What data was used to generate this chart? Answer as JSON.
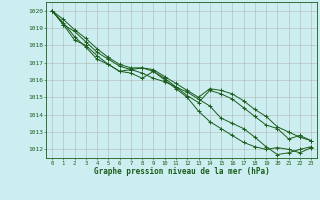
{
  "title": "Graphe pression niveau de la mer (hPa)",
  "background_color": "#cceef0",
  "grid_color": "#b0b0b0",
  "line_color": "#1a5c1a",
  "xlim": [
    -0.5,
    23.5
  ],
  "ylim": [
    1011.5,
    1020.5
  ],
  "yticks": [
    1012,
    1013,
    1014,
    1015,
    1016,
    1017,
    1018,
    1019,
    1020
  ],
  "xticks": [
    0,
    1,
    2,
    3,
    4,
    5,
    6,
    7,
    8,
    9,
    10,
    11,
    12,
    13,
    14,
    15,
    16,
    17,
    18,
    19,
    20,
    21,
    22,
    23
  ],
  "series": [
    [
      1020.0,
      1019.2,
      1018.8,
      1018.2,
      1017.6,
      1017.2,
      1016.8,
      1016.6,
      1016.4,
      1016.1,
      1015.9,
      1015.6,
      1015.3,
      1014.9,
      1014.5,
      1013.8,
      1013.5,
      1013.2,
      1012.7,
      1012.15,
      1011.7,
      1011.8,
      1012.0,
      1012.15
    ],
    [
      1020.0,
      1019.5,
      1018.9,
      1018.4,
      1017.8,
      1017.3,
      1016.9,
      1016.7,
      1016.7,
      1016.6,
      1016.2,
      1015.8,
      1015.4,
      1015.0,
      1015.5,
      1015.4,
      1015.2,
      1014.8,
      1014.3,
      1013.9,
      1013.3,
      1013.0,
      1012.7,
      1012.5
    ],
    [
      1020.0,
      1019.2,
      1018.3,
      1018.0,
      1017.4,
      1016.9,
      1016.5,
      1016.6,
      1016.7,
      1016.5,
      1016.1,
      1015.6,
      1015.1,
      1014.7,
      1015.4,
      1015.2,
      1014.9,
      1014.4,
      1013.9,
      1013.4,
      1013.2,
      1012.6,
      1012.8,
      1012.5
    ],
    [
      1020.0,
      1019.3,
      1018.5,
      1017.9,
      1017.2,
      1016.9,
      1016.5,
      1016.4,
      1016.1,
      1016.5,
      1016.0,
      1015.5,
      1015.0,
      1014.2,
      1013.6,
      1013.2,
      1012.8,
      1012.4,
      1012.15,
      1012.0,
      1012.1,
      1012.0,
      1011.8,
      1012.1
    ]
  ]
}
